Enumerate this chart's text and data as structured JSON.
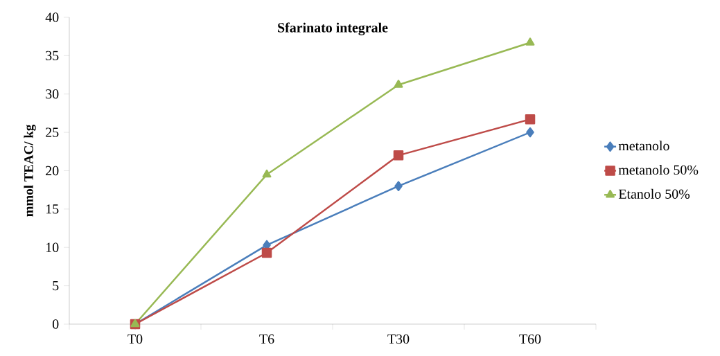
{
  "chart_data": {
    "type": "line",
    "title": "Sfarinato integrale",
    "ylabel": "mmol TEAC/ kg",
    "categories": [
      "T0",
      "T6",
      "T30",
      "T60"
    ],
    "series": [
      {
        "name": "metanolo",
        "color": "#4a7ebb",
        "marker": "diamond",
        "values": [
          0,
          10.3,
          18,
          25
        ]
      },
      {
        "name": "metanolo 50%",
        "color": "#be4b48",
        "marker": "square",
        "values": [
          0,
          9.3,
          22,
          26.7
        ]
      },
      {
        "name": "Etanolo 50%",
        "color": "#98b954",
        "marker": "triangle",
        "values": [
          0,
          19.5,
          31.2,
          36.7
        ]
      }
    ],
    "ylim": [
      0,
      40
    ],
    "yticks": [
      0,
      5,
      10,
      15,
      20,
      25,
      30,
      35,
      40
    ],
    "grid": false,
    "legend": "right",
    "line_style": "solid"
  }
}
